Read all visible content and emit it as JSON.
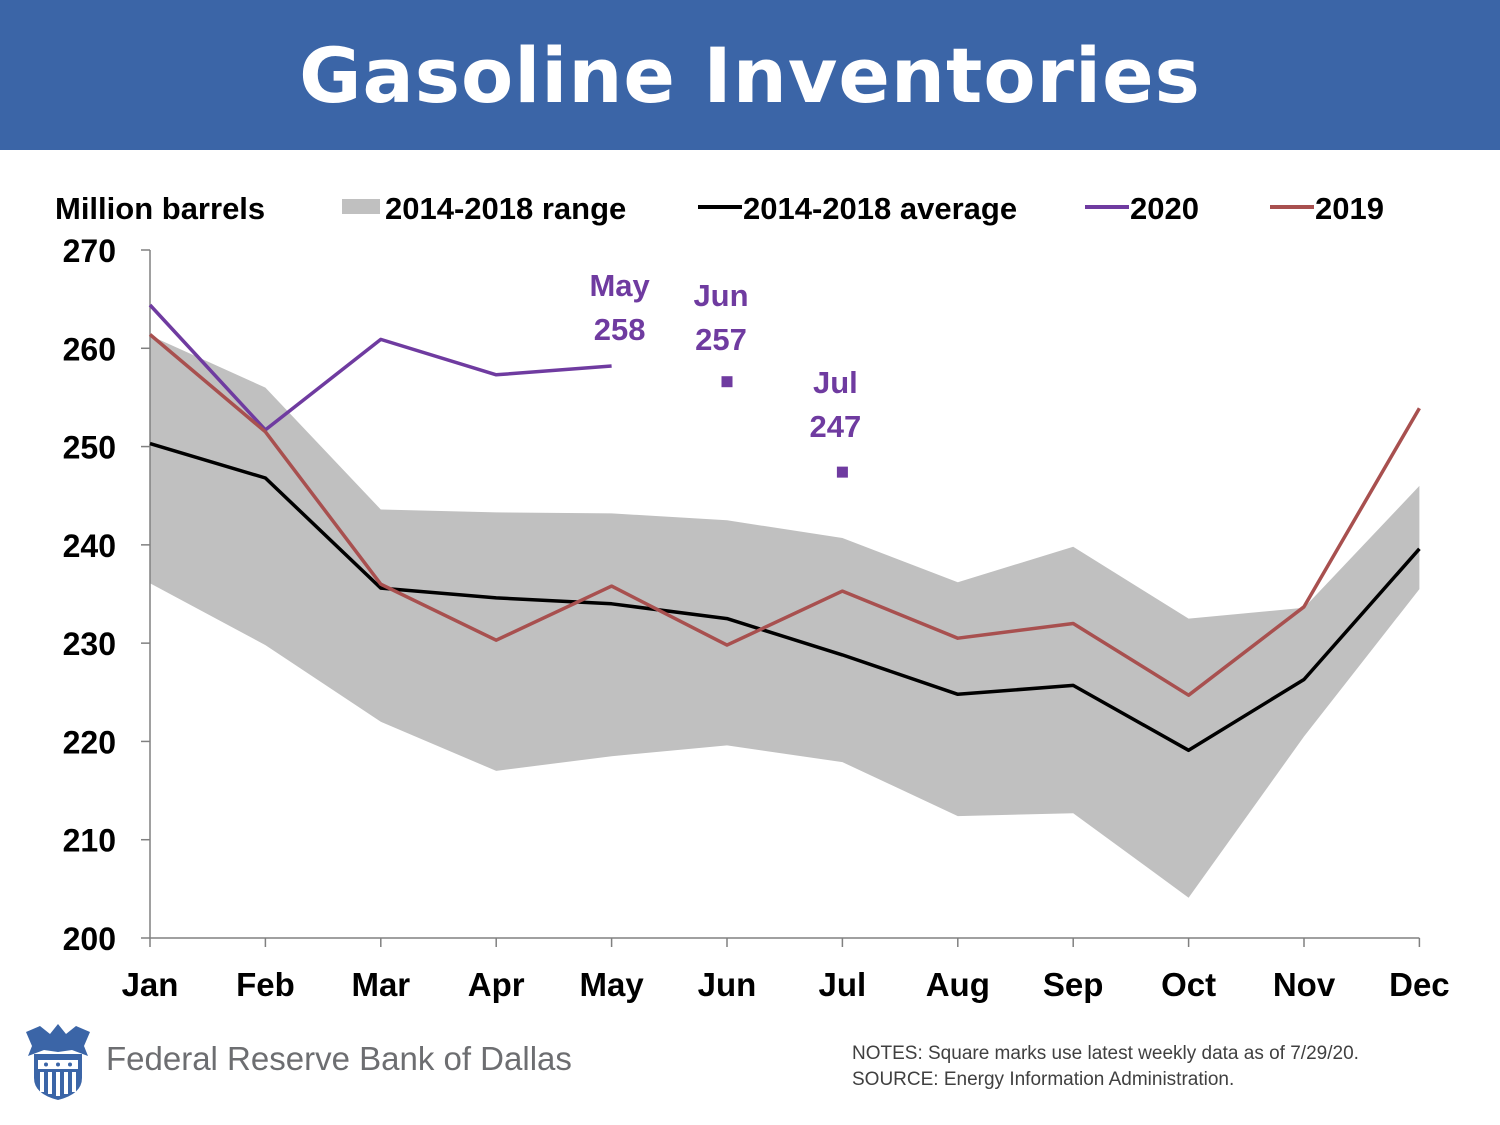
{
  "header": {
    "title": "Gasoline Inventories"
  },
  "chart_data": {
    "type": "line",
    "title": "Gasoline Inventories",
    "ylabel": "Million barrels",
    "xlabel": "",
    "ylim": [
      200,
      270
    ],
    "yticks": [
      200,
      210,
      220,
      230,
      240,
      250,
      260,
      270
    ],
    "categories": [
      "Jan",
      "Feb",
      "Mar",
      "Apr",
      "May",
      "Jun",
      "Jul",
      "Aug",
      "Sep",
      "Oct",
      "Nov",
      "Dec"
    ],
    "range": {
      "name": "2014-2018 range",
      "color": "#c0c0c0",
      "high": [
        261.3,
        256.0,
        243.6,
        243.3,
        243.2,
        242.5,
        240.7,
        236.2,
        239.8,
        232.5,
        233.6,
        246.0
      ],
      "low": [
        236.1,
        229.8,
        222.0,
        217.0,
        218.5,
        219.6,
        217.9,
        212.4,
        212.7,
        204.1,
        220.5,
        235.5
      ]
    },
    "series": [
      {
        "name": "2014-2018 average",
        "color": "#000000",
        "values": [
          250.3,
          246.8,
          235.6,
          234.6,
          234.0,
          232.5,
          228.8,
          224.8,
          225.7,
          219.1,
          226.3,
          239.6
        ]
      },
      {
        "name": "2020",
        "color": "#6f3ba0",
        "values": [
          264.4,
          251.7,
          260.9,
          257.3,
          258.2,
          null,
          null,
          null,
          null,
          null,
          null,
          null
        ],
        "square_marks": [
          {
            "month": "Jun",
            "value": 256.6
          },
          {
            "month": "Jul",
            "value": 247.4
          }
        ]
      },
      {
        "name": "2019",
        "color": "#a8504f",
        "values": [
          261.4,
          251.5,
          236.0,
          230.3,
          235.8,
          229.8,
          235.3,
          230.5,
          232.0,
          224.7,
          233.7,
          253.9
        ]
      }
    ],
    "legend": {
      "position": "top",
      "items": [
        "2014-2018 range",
        "2014-2018 average",
        "2020",
        "2019"
      ]
    },
    "annotations": [
      {
        "month": "May",
        "label": "May",
        "value_label": "258"
      },
      {
        "month": "Jun",
        "label": "Jun",
        "value_label": "257"
      },
      {
        "month": "Jul",
        "label": "Jul",
        "value_label": "247"
      }
    ]
  },
  "footer": {
    "logo_icon": "eagle-seal-icon",
    "institution": "Federal Reserve Bank of Dallas",
    "notes": "NOTES: Square marks use latest weekly data as of 7/29/20.",
    "source": "SOURCE: Energy Information Administration."
  }
}
